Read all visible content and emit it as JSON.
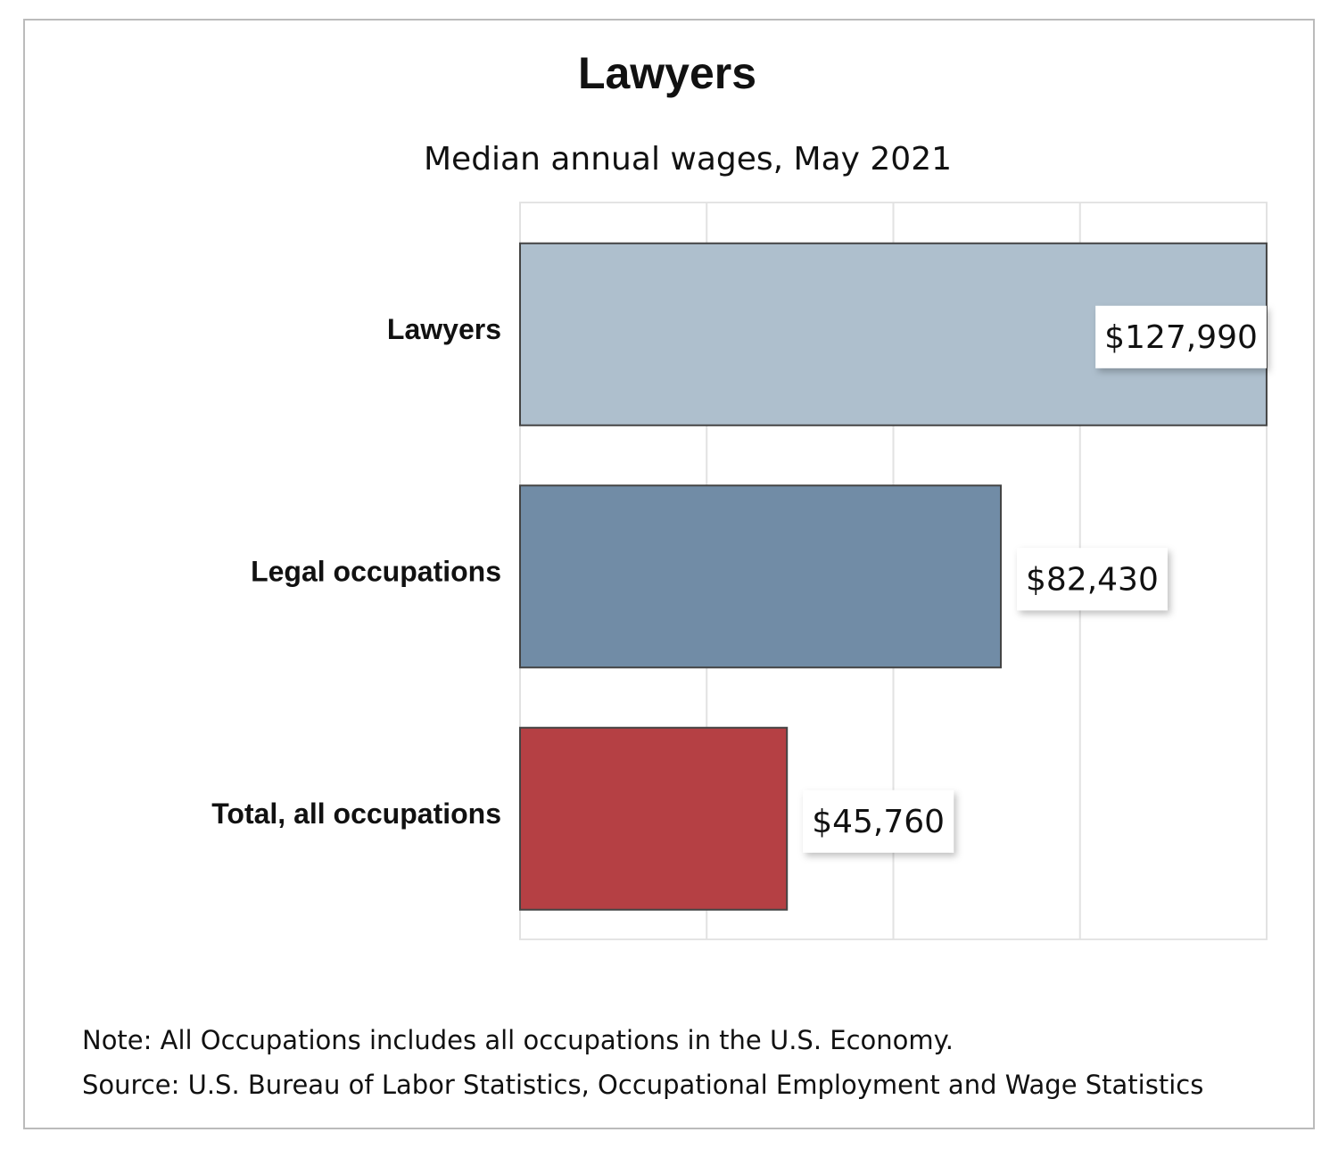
{
  "chart_data": {
    "type": "hbar",
    "title": "Lawyers",
    "subtitle": "Median annual wages, May 2021",
    "categories": [
      "Lawyers",
      "Legal occupations",
      "Total, all occupations"
    ],
    "values": [
      127990,
      82430,
      45760
    ],
    "value_labels": [
      "$127,990",
      "$82,430",
      "$45,760"
    ],
    "colors": [
      "#aebfcd",
      "#718ca6",
      "#b54044"
    ],
    "xlim": [
      0,
      128000
    ],
    "xticks": [
      0,
      32000,
      64000,
      96000,
      128000
    ],
    "grid": true,
    "notes": [
      "Note: All Occupations includes all occupations in the U.S. Economy.",
      "Source: U.S. Bureau of Labor Statistics, Occupational Employment and Wage Statistics"
    ]
  }
}
